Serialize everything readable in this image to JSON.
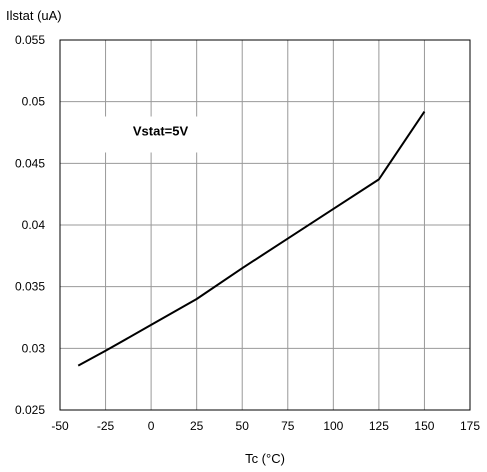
{
  "chart_data": {
    "type": "line",
    "title": "",
    "ylabel": "Ilstat (uA)",
    "xlabel": "Tc (°C)",
    "xlim": [
      -50,
      175
    ],
    "ylim": [
      0.025,
      0.055
    ],
    "x_ticks": [
      "-50",
      "-25",
      "0",
      "25",
      "50",
      "75",
      "100",
      "125",
      "150",
      "175"
    ],
    "y_ticks": [
      "0.025",
      "0.03",
      "0.035",
      "0.04",
      "0.045",
      "0.05",
      "0.055"
    ],
    "x_tick_values": [
      -50,
      -25,
      0,
      25,
      50,
      75,
      100,
      125,
      150,
      175
    ],
    "y_tick_values": [
      0.025,
      0.03,
      0.035,
      0.04,
      0.045,
      0.05,
      0.055
    ],
    "grid": true,
    "annotation": "Vstat=5V",
    "series": [
      {
        "x": [
          -40,
          -25,
          0,
          25,
          50,
          75,
          100,
          125,
          150
        ],
        "y": [
          0.0286,
          0.0298,
          0.0319,
          0.034,
          0.0365,
          0.0389,
          0.0413,
          0.0437,
          0.0492
        ],
        "color": "#000000"
      }
    ],
    "colors": {
      "line": "#000000",
      "grid": "#999999",
      "frame": "#000000",
      "background": "#ffffff"
    }
  }
}
